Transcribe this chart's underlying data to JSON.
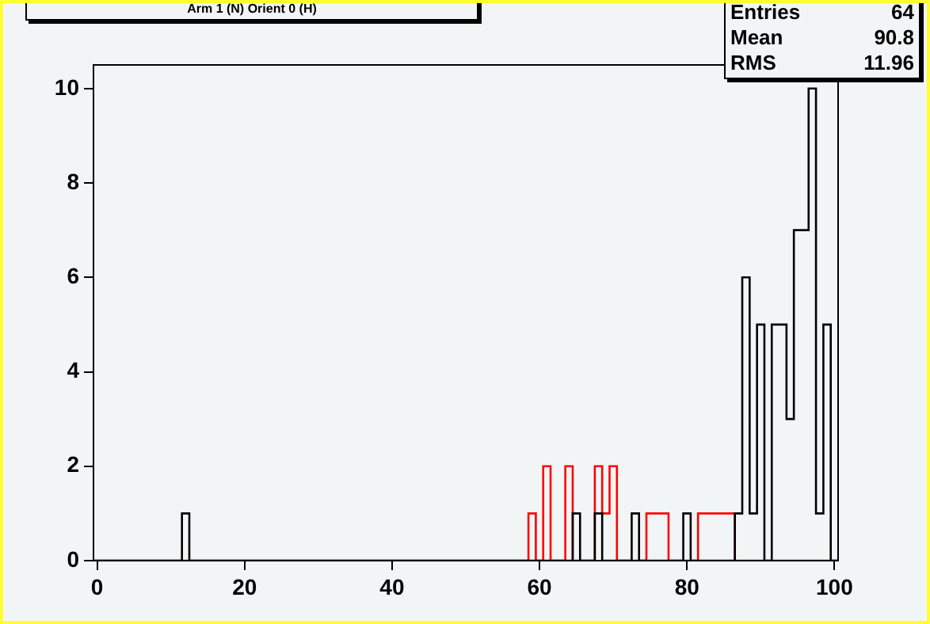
{
  "chart_data": {
    "type": "histogram",
    "title": "Arm 1 (N) Orient 0 (H)",
    "bins": [
      -0.5,
      0.5,
      1.5,
      2.5,
      3.5,
      4.5,
      5.5,
      6.5,
      7.5,
      8.5,
      9.5,
      10.5,
      11.5,
      12.5,
      13.5,
      14.5,
      15.5,
      16.5,
      17.5,
      18.5,
      19.5,
      20.5,
      21.5,
      22.5,
      23.5,
      24.5,
      25.5,
      26.5,
      27.5,
      28.5,
      29.5,
      30.5,
      31.5,
      32.5,
      33.5,
      34.5,
      35.5,
      36.5,
      37.5,
      38.5,
      39.5,
      40.5,
      41.5,
      42.5,
      43.5,
      44.5,
      45.5,
      46.5,
      47.5,
      48.5,
      49.5,
      50.5,
      51.5,
      52.5,
      53.5,
      54.5,
      55.5,
      56.5,
      57.5,
      58.5,
      59.5,
      60.5,
      61.5,
      62.5,
      63.5,
      64.5,
      65.5,
      66.5,
      67.5,
      68.5,
      69.5,
      70.5,
      71.5,
      72.5,
      73.5,
      74.5,
      75.5,
      76.5,
      77.5,
      78.5,
      79.5,
      80.5,
      81.5,
      82.5,
      83.5,
      84.5,
      85.5,
      86.5,
      87.5,
      88.5,
      89.5,
      90.5,
      91.5,
      92.5,
      93.5,
      94.5,
      95.5,
      96.5,
      97.5,
      98.5,
      99.5,
      100.5
    ],
    "series": [
      {
        "color": "#000000",
        "values": [
          0,
          0,
          0,
          0,
          0,
          0,
          0,
          0,
          0,
          0,
          0,
          0,
          1,
          0,
          0,
          0,
          0,
          0,
          0,
          0,
          0,
          0,
          0,
          0,
          0,
          0,
          0,
          0,
          0,
          0,
          0,
          0,
          0,
          0,
          0,
          0,
          0,
          0,
          0,
          0,
          0,
          0,
          0,
          0,
          0,
          0,
          0,
          0,
          0,
          0,
          0,
          0,
          0,
          0,
          0,
          0,
          0,
          0,
          0,
          0,
          0,
          0,
          0,
          0,
          0,
          1,
          0,
          0,
          1,
          0,
          0,
          0,
          0,
          1,
          0,
          0,
          0,
          0,
          0,
          0,
          1,
          0,
          0,
          0,
          0,
          0,
          0,
          1,
          6,
          1,
          5,
          0,
          5,
          5,
          3,
          7,
          7,
          10,
          1,
          5,
          0
        ]
      },
      {
        "color": "#ff0000",
        "values": [
          0,
          0,
          0,
          0,
          0,
          0,
          0,
          0,
          0,
          0,
          0,
          0,
          0,
          0,
          0,
          0,
          0,
          0,
          0,
          0,
          0,
          0,
          0,
          0,
          0,
          0,
          0,
          0,
          0,
          0,
          0,
          0,
          0,
          0,
          0,
          0,
          0,
          0,
          0,
          0,
          0,
          0,
          0,
          0,
          0,
          0,
          0,
          0,
          0,
          0,
          0,
          0,
          0,
          0,
          0,
          0,
          0,
          0,
          0,
          1,
          0,
          2,
          0,
          0,
          2,
          0,
          0,
          0,
          2,
          1,
          2,
          0,
          0,
          0,
          0,
          1,
          1,
          1,
          0,
          0,
          0,
          0,
          1,
          1,
          1,
          1,
          1,
          0,
          0,
          0,
          0,
          0,
          0,
          0,
          0,
          0,
          0,
          0,
          0,
          0,
          0
        ]
      }
    ],
    "xlim": [
      -0.5,
      100.5
    ],
    "xticks": [
      0,
      20,
      40,
      60,
      80,
      100
    ],
    "ylim": [
      0,
      10.5
    ],
    "yticks": [
      0,
      2,
      4,
      6,
      8,
      10
    ],
    "grid": false,
    "legend": false,
    "annotations": [
      "Entries 64",
      "Mean 90.8",
      "RMS 11.96"
    ]
  }
}
